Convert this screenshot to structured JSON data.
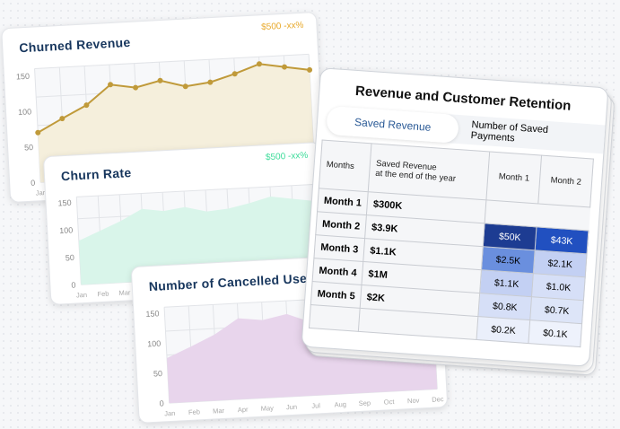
{
  "cards": [
    {
      "title": "Churned Revenue",
      "badge": "$500 -xx%",
      "badge_color": "#e8a92a",
      "line_color": "#c09a3a",
      "fill_color": "#f5efdc",
      "type": "line",
      "y_ticks": [
        "150",
        "100",
        "50",
        "0"
      ],
      "x_labels": [
        "Jan"
      ],
      "values": [
        70,
        88,
        105,
        132,
        126,
        134,
        124,
        128,
        138,
        150,
        144,
        138
      ]
    },
    {
      "title": "Churn Rate",
      "badge": "$500 -xx%",
      "badge_color": "#3ddc9a",
      "fill_color": "#d9f5ea",
      "type": "area",
      "y_ticks": [
        "150",
        "100",
        "50",
        "0"
      ],
      "x_labels": [
        "Jan",
        "Feb",
        "Mar"
      ],
      "values": [
        80,
        96,
        112,
        132,
        126,
        131,
        121,
        124,
        132,
        142,
        136,
        130
      ]
    },
    {
      "title": "Number of Cancelled User",
      "fill_color": "#e8d5ec",
      "type": "area",
      "y_ticks": [
        "150",
        "100",
        "50",
        "0"
      ],
      "x_labels": [
        "Jan",
        "Feb",
        "Mar",
        "Apr",
        "May",
        "Jun",
        "Jul",
        "Aug",
        "Sep",
        "Oct",
        "Nov",
        "Dec"
      ],
      "values": [
        75,
        92,
        110,
        135,
        130,
        138,
        122,
        108,
        92,
        82,
        68,
        56
      ]
    }
  ],
  "retention": {
    "title": "Revenue and Customer Retention",
    "tabs": [
      {
        "label": "Saved Revenue",
        "active": true
      },
      {
        "label": "Number of Saved Payments",
        "active": false
      }
    ],
    "headers": [
      "Months",
      "Saved Revenue",
      "at the end of the year",
      "Month 1",
      "Month 2"
    ],
    "rows": [
      {
        "month": "Month 1",
        "saved": "$300K"
      },
      {
        "month": "Month 2",
        "saved": "$3.9K"
      },
      {
        "month": "Month 3",
        "saved": "$1.1K"
      },
      {
        "month": "Month 4",
        "saved": "$1M"
      },
      {
        "month": "Month 5",
        "saved": "$2K"
      }
    ],
    "heat": [
      [
        {
          "v": "$50K",
          "c": "#1d3c92"
        },
        {
          "v": "$43K",
          "c": "#2150c0"
        }
      ],
      [
        {
          "v": "$2.5K",
          "c": "#6a8fde"
        },
        {
          "v": "$2.1K",
          "c": "#c3d0f3"
        }
      ],
      [
        {
          "v": "$1.1K",
          "c": "#c3d0f3"
        },
        {
          "v": "$1.0K",
          "c": "#d6dff7"
        }
      ],
      [
        {
          "v": "$0.8K",
          "c": "#d6dff7"
        },
        {
          "v": "$0.7K",
          "c": "#dde5f8"
        }
      ],
      [
        {
          "v": "$0.2K",
          "c": "#eaeffb"
        },
        {
          "v": "$0.1K",
          "c": "#eef2fc"
        }
      ]
    ]
  }
}
